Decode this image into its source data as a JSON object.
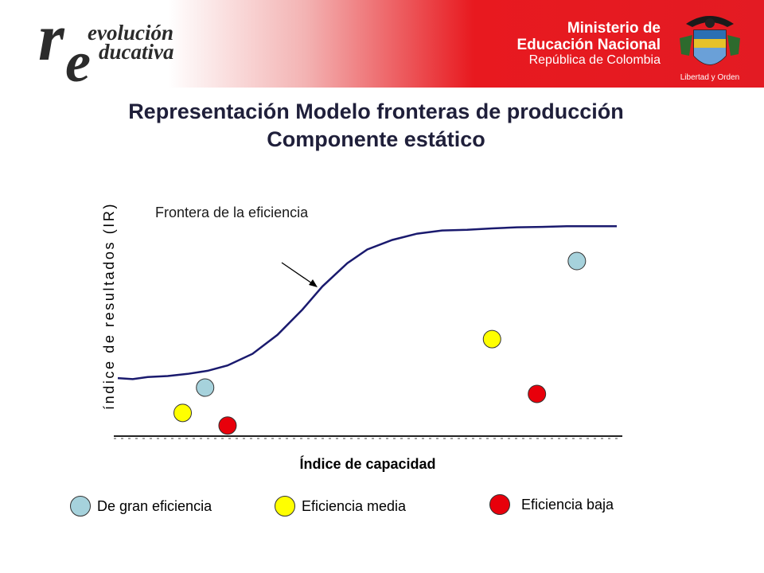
{
  "header": {
    "logo": {
      "line1": "evolución",
      "line2": "ducativa",
      "big1": "r",
      "big2": "e"
    },
    "ministry": {
      "line1": "Ministerio de",
      "line2": "Educación Nacional",
      "line3": "República de Colombia"
    },
    "motto": "Libertad y Orden"
  },
  "title": {
    "line1": "Representación Modelo fronteras de producción",
    "line2": "Componente estático"
  },
  "colors": {
    "frontier": "#1a1a6e",
    "high": "#a6d2dc",
    "medium": "#ffff00",
    "low": "#e8000b",
    "axis": "#222222"
  },
  "chart_data": {
    "type": "scatter",
    "title": "",
    "xlabel": "Índice de capacidad",
    "ylabel": "índice de resultados (IR)",
    "frontier": {
      "label": "Frontera de la eficiencia",
      "x": [
        0,
        3,
        6,
        10,
        14,
        18,
        22,
        27,
        32,
        37,
        41,
        46,
        50,
        55,
        60,
        65,
        70,
        75,
        80,
        85,
        90,
        95,
        100
      ],
      "y": [
        27.5,
        27,
        28,
        28.5,
        29.5,
        31,
        33.5,
        39,
        48,
        60,
        71,
        82,
        88.5,
        93,
        96,
        97.5,
        97.8,
        98.5,
        99,
        99.2,
        99.5,
        99.5,
        99.5
      ]
    },
    "series": [
      {
        "name": "De gran eficiencia",
        "color_key": "high",
        "points": [
          {
            "x": 17.5,
            "y": 23
          },
          {
            "x": 92,
            "y": 83
          }
        ]
      },
      {
        "name": "Eficiencia media",
        "color_key": "medium",
        "points": [
          {
            "x": 13,
            "y": 11
          },
          {
            "x": 75,
            "y": 46
          }
        ]
      },
      {
        "name": "Eficiencia baja",
        "color_key": "low",
        "points": [
          {
            "x": 22,
            "y": 5
          },
          {
            "x": 84,
            "y": 20
          }
        ]
      }
    ]
  }
}
